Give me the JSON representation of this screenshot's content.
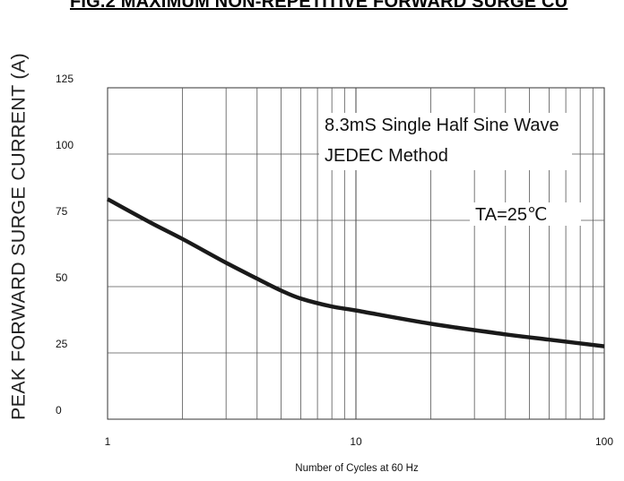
{
  "chart_data": {
    "type": "line",
    "title": "FIG.2 MAXIMUM NON-REPETITIVE FORWARD SURGE CU",
    "xlabel": "Number of Cycles at 60 Hz",
    "ylabel": "PEAK FORWARD SURGE CURRENT (A)",
    "xscale": "log",
    "xlim": [
      1,
      100
    ],
    "ylim": [
      0,
      125
    ],
    "x_ticks": [
      "1",
      "10",
      "100"
    ],
    "y_ticks": [
      "125",
      "100",
      "75",
      "50",
      "25",
      "0"
    ],
    "grid": true,
    "series": [
      {
        "color": "#1a1a1a",
        "x": [
          1,
          1.5,
          2,
          3,
          4,
          5,
          6,
          8,
          10,
          20,
          40,
          60,
          100
        ],
        "y": [
          83,
          74,
          68,
          59,
          53,
          48.5,
          45.5,
          42.5,
          41,
          36,
          32,
          30,
          27.5
        ]
      }
    ],
    "annotations": [
      "8.3mS Single Half Sine Wave",
      "JEDEC Method",
      "TA=25℃"
    ]
  }
}
